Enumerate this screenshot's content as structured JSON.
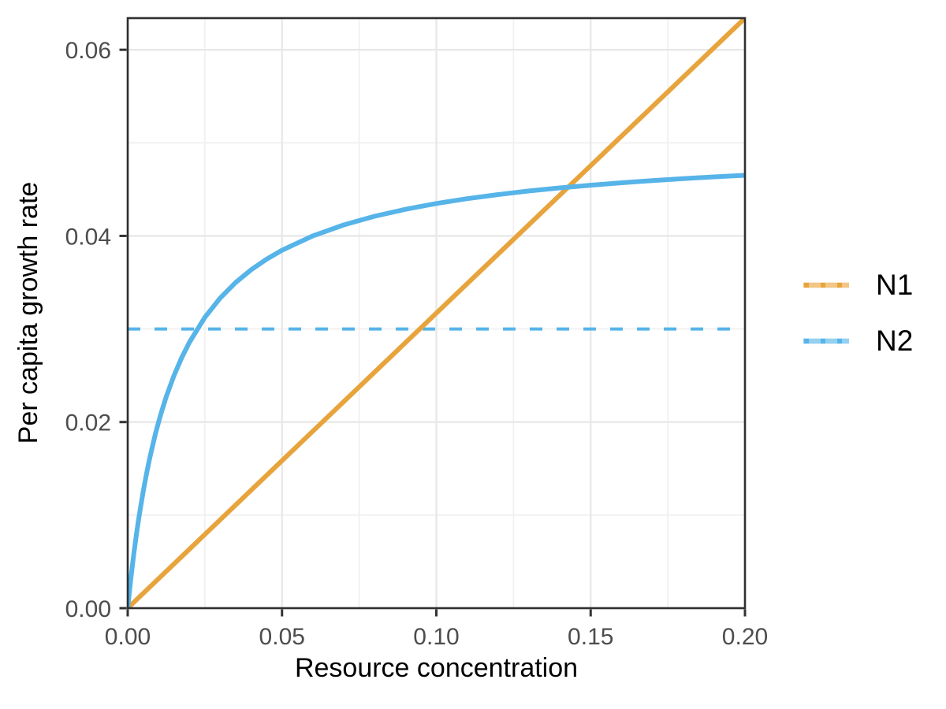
{
  "chart_data": {
    "type": "line",
    "title": "",
    "xlabel": "Resource concentration",
    "ylabel": "Per capita growth rate",
    "xlim": [
      0,
      0.2
    ],
    "ylim": [
      0,
      0.0634
    ],
    "grid": true,
    "legend_position": "right",
    "x_ticks": [
      0,
      0.05,
      0.1,
      0.15,
      0.2
    ],
    "x_tick_labels": [
      "0.00",
      "0.05",
      "0.10",
      "0.15",
      "0.20"
    ],
    "x_minor_ticks": [
      0.025,
      0.075,
      0.125,
      0.175
    ],
    "y_ticks": [
      0,
      0.02,
      0.04,
      0.06
    ],
    "y_tick_labels": [
      "0.00",
      "0.02",
      "0.04",
      "0.06"
    ],
    "y_minor_ticks": [
      0.01,
      0.03,
      0.05
    ],
    "series": [
      {
        "name": "N1",
        "color": "#E8A43C",
        "linetype": "solid",
        "shape_hint": "linear, y ≈ 0.317·x",
        "x": [
          0,
          0.2
        ],
        "y": [
          0,
          0.0634
        ]
      },
      {
        "name": "N2",
        "color": "#56B4E9",
        "linetype": "solid",
        "shape_hint": "saturating (Monod), y ≈ 0.05·x/(0.015+x)",
        "x": [
          0,
          0.0005,
          0.001,
          0.0015,
          0.002,
          0.0025,
          0.003,
          0.0035,
          0.004,
          0.005,
          0.006,
          0.007,
          0.0075,
          0.009,
          0.01,
          0.011,
          0.0125,
          0.015,
          0.0175,
          0.02,
          0.025,
          0.03,
          0.035,
          0.04,
          0.045,
          0.05,
          0.06,
          0.07,
          0.08,
          0.09,
          0.1,
          0.11,
          0.12,
          0.13,
          0.14,
          0.15,
          0.16,
          0.17,
          0.18,
          0.19,
          0.2
        ],
        "y": [
          0,
          0.00161,
          0.00313,
          0.00455,
          0.00588,
          0.00714,
          0.00833,
          0.00946,
          0.01053,
          0.0125,
          0.01429,
          0.01591,
          0.01667,
          0.01875,
          0.02,
          0.02115,
          0.02273,
          0.025,
          0.02692,
          0.02857,
          0.03125,
          0.03333,
          0.035,
          0.03636,
          0.0375,
          0.03846,
          0.04,
          0.04118,
          0.04211,
          0.04286,
          0.04348,
          0.044,
          0.04444,
          0.04483,
          0.04516,
          0.04545,
          0.04571,
          0.04595,
          0.04615,
          0.04634,
          0.04651
        ]
      }
    ],
    "reference_line": {
      "y": 0.03,
      "x_start": 0,
      "x_end": 0.2,
      "color": "#56B4E9",
      "linetype": "dashed"
    },
    "colors": {
      "grid_major": "#E8E8E8",
      "grid_minor": "#F0F0F0",
      "panel_border": "#2F2F2F",
      "tick_mark": "#333333",
      "tick_text": "#4D4D4D",
      "title_text": "#000000"
    }
  },
  "legend": {
    "items": [
      {
        "label": "N1"
      },
      {
        "label": "N2"
      }
    ]
  }
}
